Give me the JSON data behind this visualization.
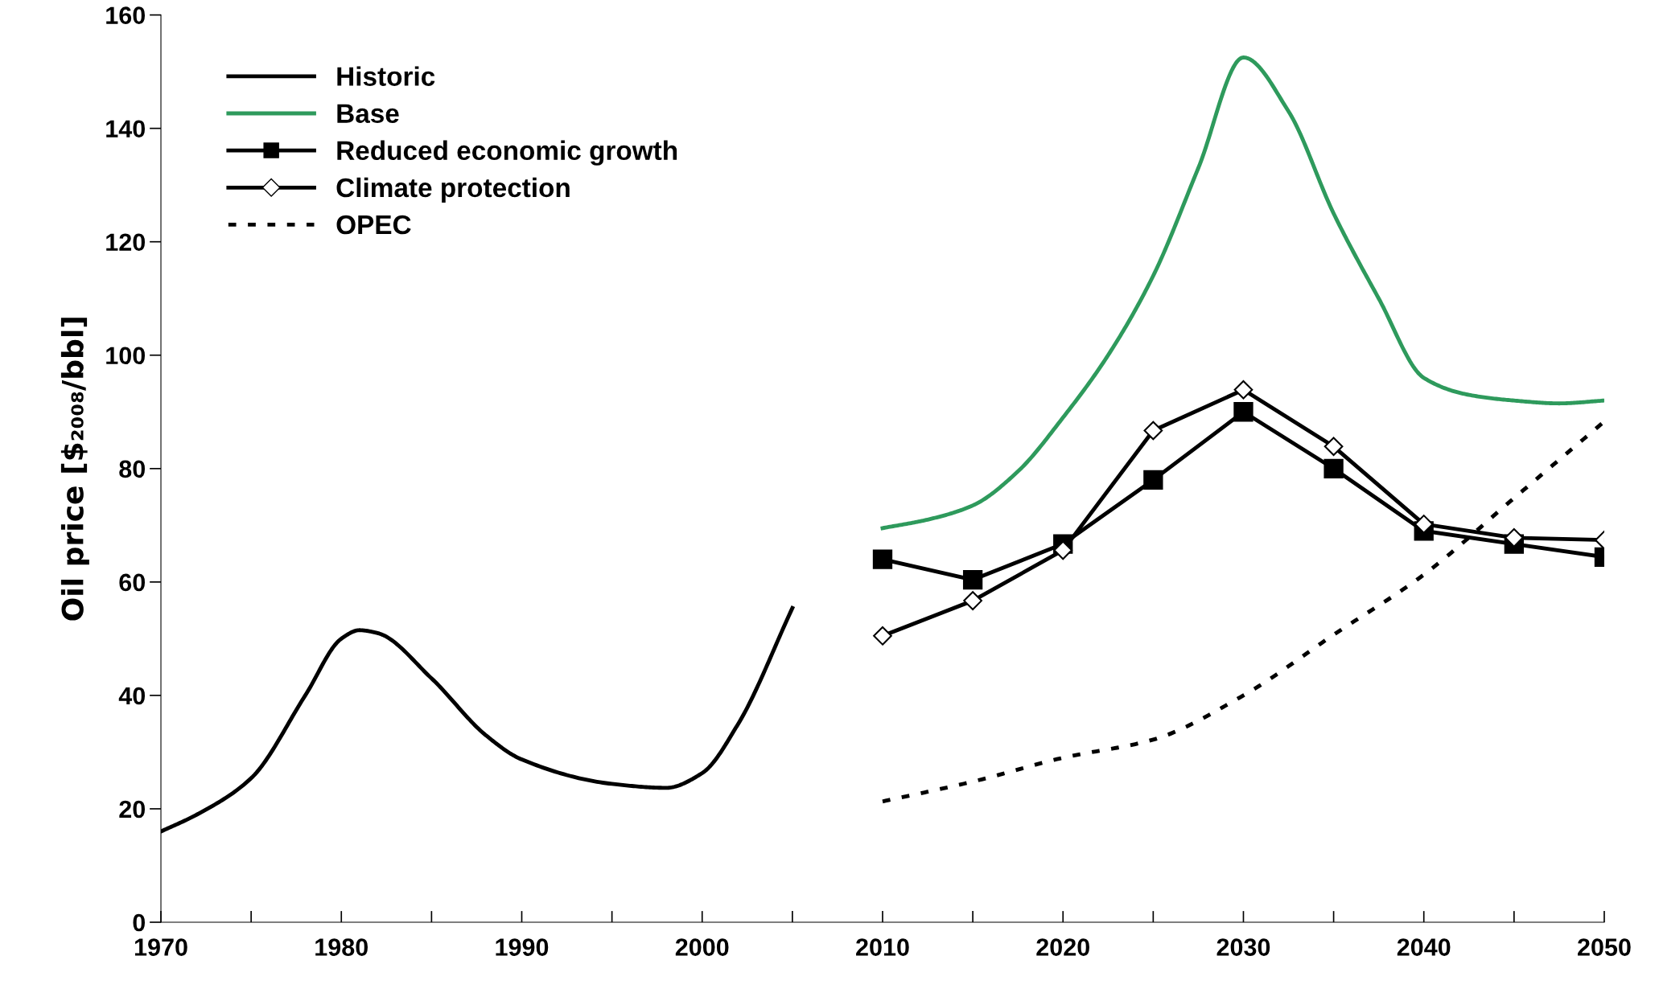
{
  "chart_data": {
    "type": "line",
    "ylabel": "Oil price [$₂₀₀₈/bbl]",
    "xlim": [
      1970,
      2050
    ],
    "ylim": [
      0,
      160
    ],
    "xticks": [
      1970,
      {
        "value": 1975,
        "label": null
      },
      1980,
      {
        "value": 1985,
        "label": null
      },
      1990,
      {
        "value": 1995,
        "label": null
      },
      2000,
      {
        "value": 2005,
        "label": null
      },
      2010,
      {
        "value": 2015,
        "label": null
      },
      2020,
      {
        "value": 2025,
        "label": null
      },
      2030,
      {
        "value": 2035,
        "label": null
      },
      2040,
      {
        "value": 2045,
        "label": null
      },
      2050
    ],
    "yticks": [
      0,
      20,
      40,
      60,
      80,
      100,
      120,
      140,
      160
    ],
    "grid": false,
    "legend": "top left",
    "series": [
      {
        "name": "Historic",
        "color": "#000000",
        "marker": "none",
        "line_style": "solid",
        "x": [
          1970,
          1972,
          1975,
          1978,
          1980,
          1981,
          1982,
          1985,
          1988,
          1990,
          1995,
          1998,
          2000,
          2002,
          2005
        ],
        "values": [
          16,
          19,
          25.4,
          40,
          50,
          51.5,
          51,
          43,
          33,
          28.7,
          24.4,
          23.7,
          26.3,
          35,
          55.4
        ]
      },
      {
        "name": "Base",
        "color": "#2e9a5c",
        "marker": "none",
        "line_style": "solid",
        "x": [
          2010,
          2012.5,
          2015,
          2017.5,
          2020,
          2022.5,
          2025,
          2027.5,
          2030,
          2032.5,
          2035,
          2037.5,
          2040,
          2042.5,
          2045,
          2047.5,
          2050
        ],
        "values": [
          69.5,
          71,
          73.5,
          79.5,
          89,
          100,
          114,
          133,
          152.5,
          143,
          125,
          110,
          96,
          93,
          92,
          91.5,
          92
        ]
      },
      {
        "name": "Reduced economic growth",
        "color": "#000000",
        "marker": "square",
        "line_style": "solid",
        "x": [
          2010,
          2015,
          2020,
          2025,
          2030,
          2035,
          2040,
          2045,
          2050
        ],
        "values": [
          64,
          60.4,
          66.7,
          78,
          90,
          80,
          69,
          66.7,
          64.4
        ]
      },
      {
        "name": "Climate protection",
        "color": "#000000",
        "marker": "diamond",
        "line_style": "solid",
        "x": [
          2010,
          2015,
          2020,
          2025,
          2030,
          2035,
          2040,
          2045,
          2050
        ],
        "values": [
          50.5,
          56.7,
          65.6,
          86.7,
          93.9,
          83.9,
          70.2,
          67.8,
          67.4
        ]
      },
      {
        "name": "OPEC",
        "color": "#000000",
        "marker": "none",
        "line_style": "dashed",
        "x": [
          2010,
          2015,
          2020,
          2025,
          2030,
          2035,
          2040,
          2045,
          2050
        ],
        "values": [
          21.3,
          24.8,
          29,
          32.2,
          40,
          50.7,
          61.3,
          74.8,
          88.3
        ]
      }
    ]
  }
}
